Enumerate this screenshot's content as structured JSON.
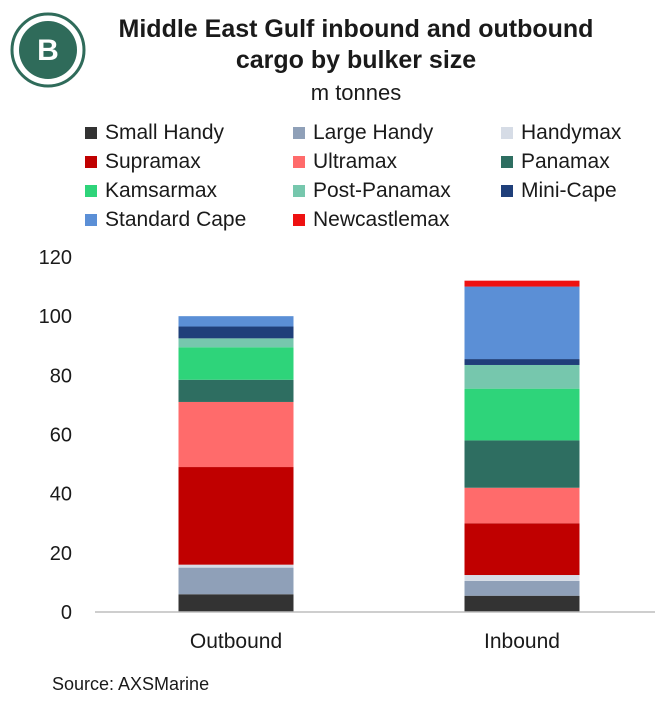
{
  "title": "Middle East Gulf inbound and outbound cargo by bulker size",
  "subtitle": "m tonnes",
  "source": "Source: AXSMarine",
  "logo_letter": "B",
  "colors": {
    "brand": "#2f6b5a",
    "axis": "#bdbdbd",
    "text": "#1a1a1a"
  },
  "chart_data": {
    "type": "bar",
    "stacked": true,
    "categories": [
      "Outbound",
      "Inbound"
    ],
    "ylim": [
      0,
      120
    ],
    "yticks": [
      0,
      20,
      40,
      60,
      80,
      100,
      120
    ],
    "grid": false,
    "legend_position": "top",
    "series": [
      {
        "name": "Small Handy",
        "color": "#333333",
        "values": [
          6,
          5.5
        ]
      },
      {
        "name": "Large Handy",
        "color": "#8fa0b8",
        "values": [
          9,
          5
        ]
      },
      {
        "name": "Handymax",
        "color": "#d6dce6",
        "values": [
          1,
          2
        ]
      },
      {
        "name": "Supramax",
        "color": "#c00000",
        "values": [
          33,
          17.5
        ]
      },
      {
        "name": "Ultramax",
        "color": "#ff6b6b",
        "values": [
          22,
          12
        ]
      },
      {
        "name": "Panamax",
        "color": "#2e6e61",
        "values": [
          7.5,
          16
        ]
      },
      {
        "name": "Kamsarmax",
        "color": "#2ed47a",
        "values": [
          11,
          17.5
        ]
      },
      {
        "name": "Post-Panamax",
        "color": "#76c7ad",
        "values": [
          3,
          8
        ]
      },
      {
        "name": "Mini-Cape",
        "color": "#1f3f7a",
        "values": [
          4,
          2
        ]
      },
      {
        "name": "Standard Cape",
        "color": "#5b8fd6",
        "values": [
          3.5,
          24.5
        ]
      },
      {
        "name": "Newcastlemax",
        "color": "#ee1111",
        "values": [
          0,
          2
        ]
      }
    ]
  }
}
